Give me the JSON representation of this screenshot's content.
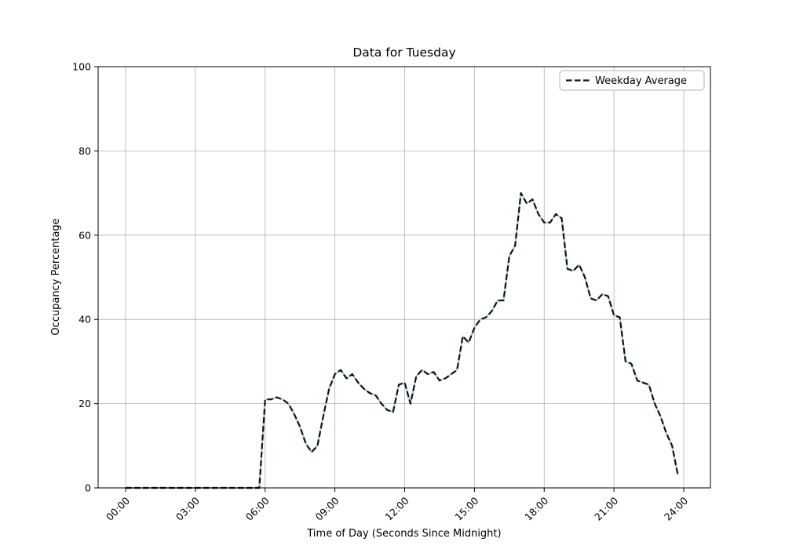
{
  "chart_data": {
    "type": "line",
    "title": "Data for Tuesday",
    "xlabel": "Time of Day (Seconds Since Midnight)",
    "ylabel": "Occupancy Percentage",
    "xlim_seconds": [
      0,
      86400
    ],
    "ylim": [
      0,
      100
    ],
    "grid": true,
    "x_ticks": [
      {
        "seconds": 0,
        "label": "00:00"
      },
      {
        "seconds": 10800,
        "label": "03:00"
      },
      {
        "seconds": 21600,
        "label": "06:00"
      },
      {
        "seconds": 32400,
        "label": "09:00"
      },
      {
        "seconds": 43200,
        "label": "12:00"
      },
      {
        "seconds": 54000,
        "label": "15:00"
      },
      {
        "seconds": 64800,
        "label": "18:00"
      },
      {
        "seconds": 75600,
        "label": "21:00"
      },
      {
        "seconds": 86400,
        "label": "24:00"
      }
    ],
    "y_ticks": [
      0,
      20,
      40,
      60,
      80,
      100
    ],
    "legend": {
      "position": "upper-right",
      "entries": [
        {
          "label": "Weekday Average",
          "color": "#101018",
          "dashed": true
        }
      ]
    },
    "series": [
      {
        "name": "Weekday Average",
        "start_seconds": 0,
        "sample_interval_seconds": 900,
        "color": "#101018",
        "dashed": true,
        "underlay_color": "#a8ccd8",
        "values": [
          0,
          0,
          0,
          0,
          0,
          0,
          0,
          0,
          0,
          0,
          0,
          0,
          0,
          0,
          0,
          0,
          0,
          0,
          0,
          0,
          0,
          0,
          0,
          0,
          21,
          21,
          21.5,
          21,
          20,
          17.5,
          14.5,
          10.5,
          8.5,
          10,
          17,
          23.5,
          27,
          28,
          26,
          27,
          25,
          23.5,
          22.5,
          22,
          20,
          18.5,
          18,
          24.5,
          25,
          20,
          26.5,
          28,
          27,
          27.5,
          25.5,
          26,
          27,
          28,
          36,
          34.5,
          38,
          40,
          40.5,
          42,
          44.5,
          44.5,
          55,
          57.5,
          70,
          67.5,
          68.5,
          65,
          63,
          63,
          65,
          64,
          52,
          51.5,
          53,
          50,
          45,
          44.5,
          46,
          45.5,
          41,
          40.5,
          30,
          29.5,
          25.5,
          25,
          24.5,
          20,
          17,
          13,
          10,
          3
        ]
      }
    ]
  }
}
